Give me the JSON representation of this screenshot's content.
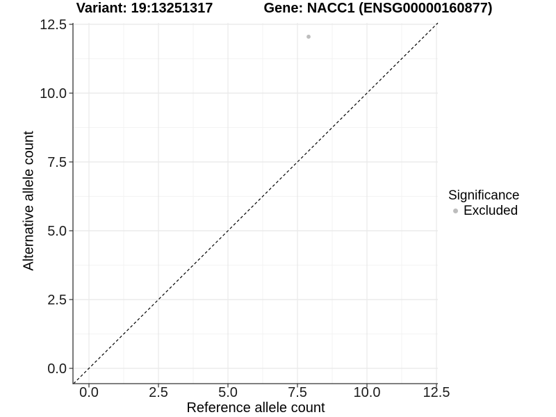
{
  "header": {
    "variant_title": "Variant: 19:13251317",
    "gene_title": "Gene: NACC1 (ENSG00000160877)"
  },
  "chart_data": {
    "type": "scatter",
    "title": "Variant: 19:13251317   Gene: NACC1 (ENSG00000160877)",
    "xlabel": "Reference allele count",
    "ylabel": "Alternative allele count",
    "x_ticks": [
      "0.0",
      "2.5",
      "5.0",
      "7.5",
      "10.0",
      "12.5"
    ],
    "y_ticks": [
      "0.0",
      "2.5",
      "5.0",
      "7.5",
      "10.0",
      "12.5"
    ],
    "xlim": [
      -0.6,
      12.55
    ],
    "ylim": [
      -0.55,
      12.6
    ],
    "grid": "major and minor, light gray, white background",
    "series": [
      {
        "name": "Excluded",
        "marker": "circle",
        "color": "#bdbdbd",
        "points": [
          [
            7.9,
            12.05
          ]
        ]
      }
    ],
    "reference_line": {
      "kind": "identity",
      "slope": 1,
      "intercept": 0,
      "style": "dashed",
      "color": "#000000"
    },
    "legend": {
      "title": "Significance",
      "position": "right",
      "items": [
        {
          "label": "Excluded",
          "color": "#bdbdbd",
          "marker": "circle"
        }
      ]
    }
  },
  "colors": {
    "background": "#ffffff",
    "grid_major": "#e8e8e8",
    "grid_minor": "#f3f3f3",
    "axis_line": "#333333",
    "tick_text": "#1a1a1a",
    "point": "#bdbdbd"
  }
}
